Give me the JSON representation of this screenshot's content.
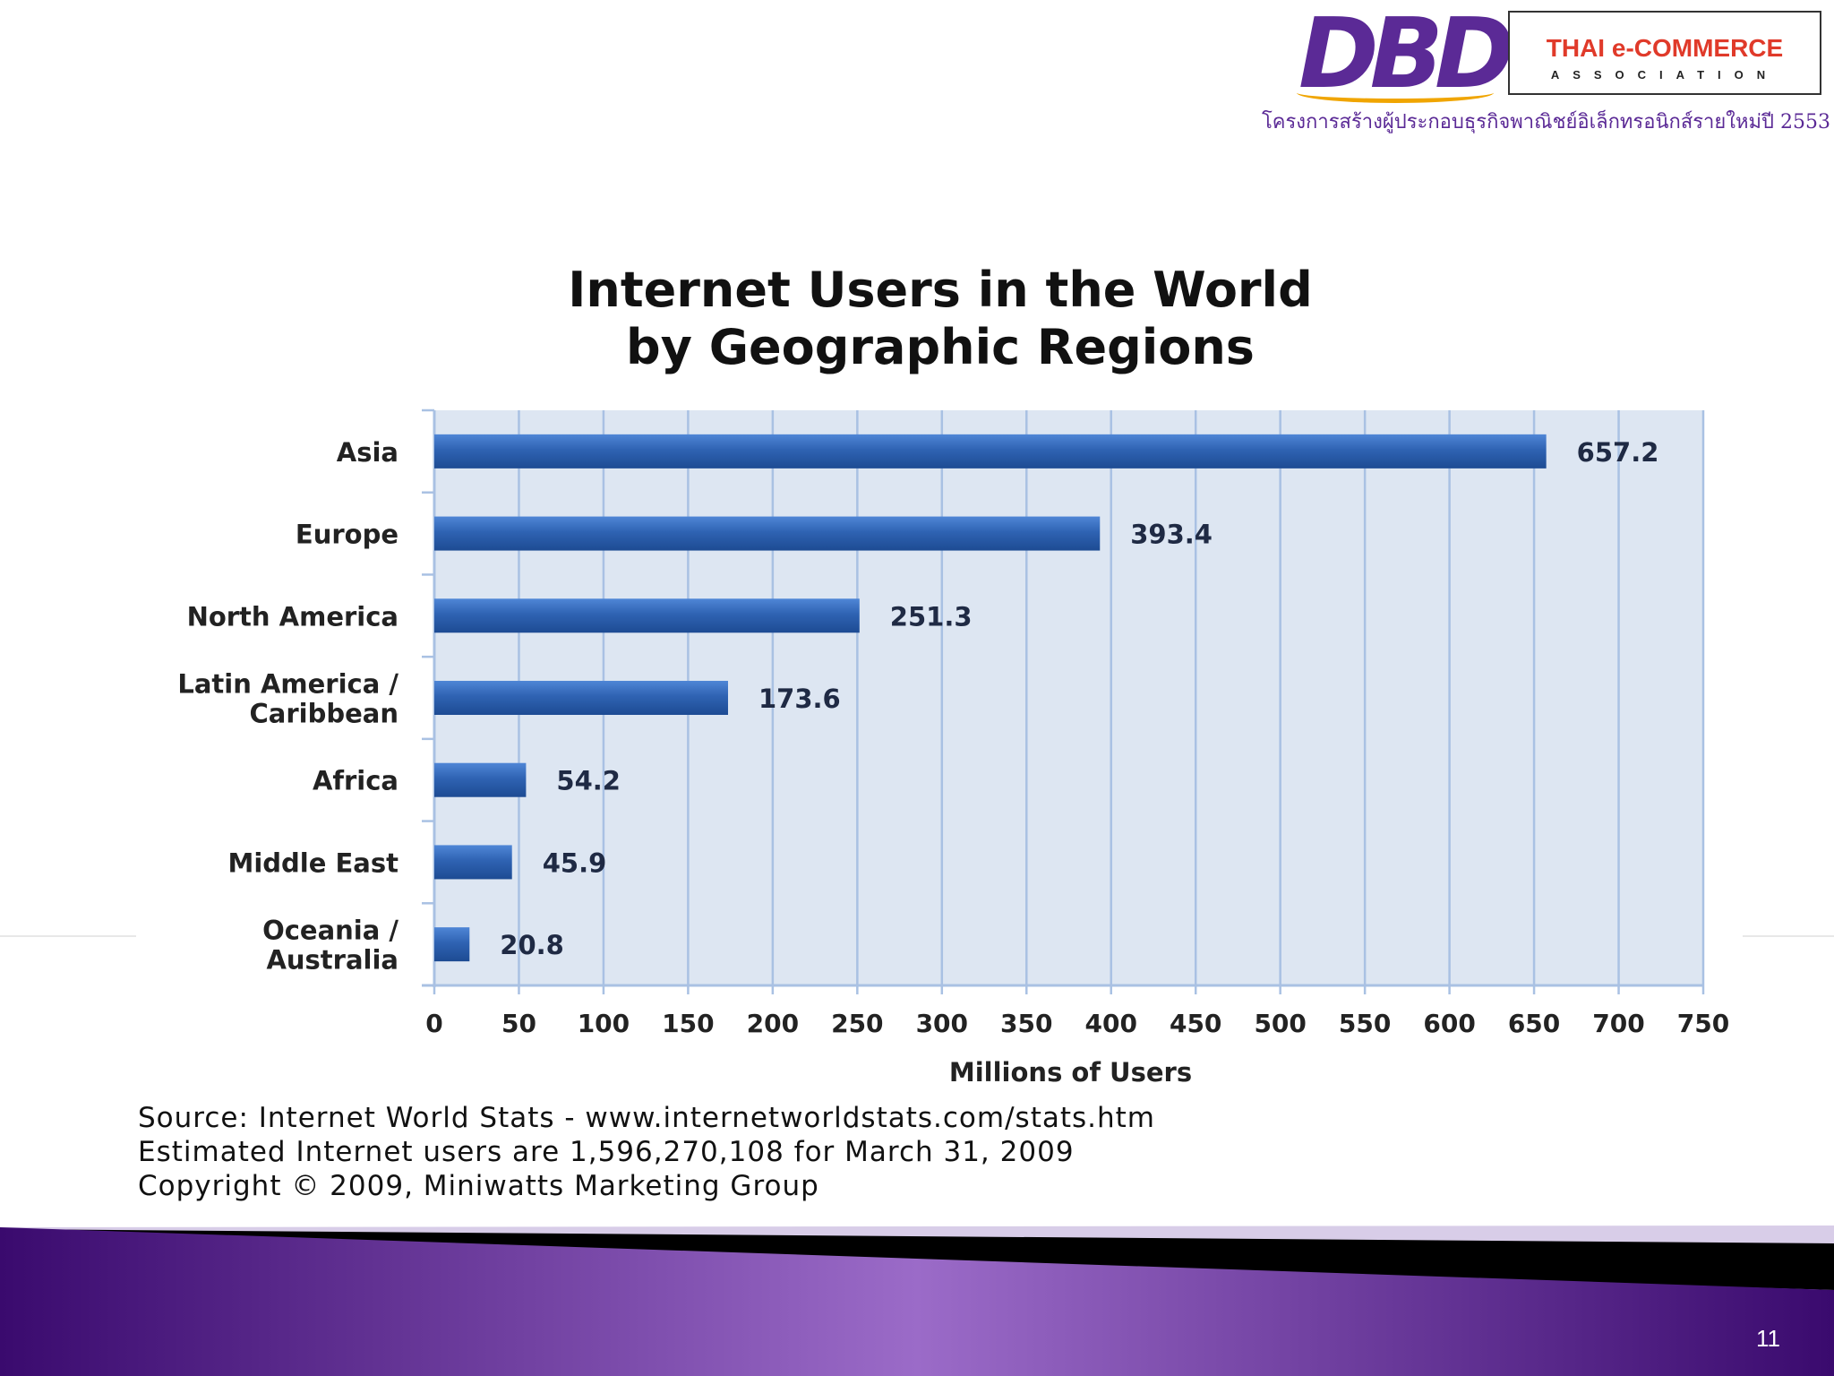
{
  "header": {
    "brand_mark": "DBD",
    "association_title": "THAI e-COMMERCE",
    "association_subtitle": "ASSOCIATION",
    "project_text": "โครงการสร้างผู้ประกอบธุรกิจพาณิชย์อิเล็กทรอนิกส์รายใหม่ปี 2553"
  },
  "chart_data": {
    "type": "bar",
    "orientation": "horizontal",
    "title": [
      "Internet Users in the World",
      "by Geographic Regions"
    ],
    "xlabel": "Millions of Users",
    "ylabel": "",
    "categories": [
      [
        "Asia"
      ],
      [
        "Europe"
      ],
      [
        "North America"
      ],
      [
        "Latin America /",
        "Caribbean"
      ],
      [
        "Africa"
      ],
      [
        "Middle East"
      ],
      [
        "Oceania  /",
        "Australia"
      ]
    ],
    "values": [
      657.2,
      393.4,
      251.3,
      173.6,
      54.2,
      45.9,
      20.8
    ],
    "data_labels": [
      "657.2",
      "393.4",
      "251.3",
      "173.6",
      "54.2",
      "45.9",
      "20.8"
    ],
    "xlim": [
      0,
      750
    ],
    "xticks": [
      0,
      50,
      100,
      150,
      200,
      250,
      300,
      350,
      400,
      450,
      500,
      550,
      600,
      650,
      700,
      750
    ],
    "grid": true,
    "colors": {
      "bar": "#2f63b3",
      "bar_light": "#4f86d6",
      "bar_dark": "#1d4b93",
      "plot_bg": "#dde6f2",
      "grid": "#a9c1e3"
    }
  },
  "footer": {
    "source_lines": [
      "Source: Internet World Stats - www.internetworldstats.com/stats.htm",
      "Estimated Internet users are 1,596,270,108 for March 31, 2009",
      "Copyright © 2009, Miniwatts Marketing Group"
    ],
    "page_number": "11"
  },
  "theme": {
    "purple_dark": "#3a0a6e",
    "purple_light": "#9b6bc8",
    "brand_purple": "#5b2a96",
    "brand_orange": "#f0a500",
    "brand_red": "#e03a2a"
  }
}
